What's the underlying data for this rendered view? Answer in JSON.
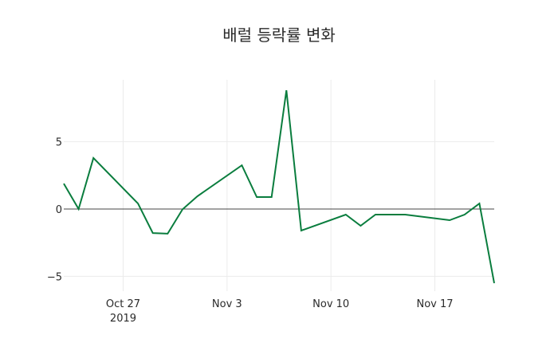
{
  "chart_data": {
    "type": "line",
    "title": "배럴 등락률 변화",
    "xlabel": "",
    "ylabel": "",
    "x": [
      "2019-10-23",
      "2019-10-24",
      "2019-10-25",
      "2019-10-28",
      "2019-10-29",
      "2019-10-30",
      "2019-10-31",
      "2019-11-01",
      "2019-11-04",
      "2019-11-05",
      "2019-11-06",
      "2019-11-07",
      "2019-11-08",
      "2019-11-11",
      "2019-11-12",
      "2019-11-13",
      "2019-11-15",
      "2019-11-18",
      "2019-11-19",
      "2019-11-20",
      "2019-11-21"
    ],
    "series": [
      {
        "name": "등락률",
        "color": "#0a7d3e",
        "values": [
          1.89,
          0.0,
          3.79,
          0.41,
          -1.78,
          -1.83,
          -0.02,
          0.95,
          3.25,
          0.89,
          0.89,
          8.82,
          -1.6,
          -0.41,
          -1.24,
          -0.41,
          -0.41,
          -0.83,
          -0.41,
          0.41,
          -5.5
        ]
      }
    ],
    "x_ticks": [
      {
        "date": "2019-10-27",
        "label": "Oct 27",
        "sublabel": "2019"
      },
      {
        "date": "2019-11-03",
        "label": "Nov 3",
        "sublabel": ""
      },
      {
        "date": "2019-11-10",
        "label": "Nov 10",
        "sublabel": ""
      },
      {
        "date": "2019-11-17",
        "label": "Nov 17",
        "sublabel": ""
      }
    ],
    "y_ticks": [
      {
        "value": 5,
        "label": "5"
      },
      {
        "value": 0,
        "label": "0"
      },
      {
        "value": -5,
        "label": "−5"
      }
    ],
    "xlim": [
      "2019-10-23",
      "2019-11-21"
    ],
    "ylim": [
      -6.1,
      9.6
    ],
    "grid": true,
    "zeroline": true,
    "legend": "none"
  }
}
